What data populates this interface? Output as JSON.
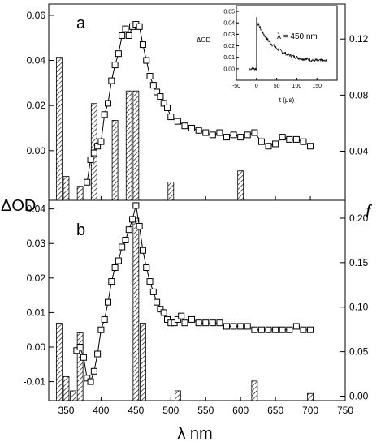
{
  "chart_data": [
    {
      "type": "bar+line",
      "panel_label": "a",
      "x_ticks": [],
      "xlim": [
        325,
        750
      ],
      "ylim_left": [
        -0.022,
        0.065
      ],
      "ylim_right": [
        0.005,
        0.145
      ],
      "y_left_ticks": [
        0.0,
        0.02,
        0.04,
        0.06
      ],
      "y_left_tick_labels": [
        "0.00",
        "0.02",
        "0.04",
        "0.06"
      ],
      "y_right_ticks": [
        0.04,
        0.08,
        0.12
      ],
      "y_right_tick_labels": [
        "0.04",
        "0.08",
        "0.12"
      ],
      "series": [
        {
          "axis": "left",
          "style": "line-open-square",
          "x": [
            380,
            385,
            390,
            395,
            400,
            405,
            410,
            415,
            420,
            425,
            430,
            435,
            440,
            445,
            450,
            455,
            460,
            465,
            470,
            475,
            480,
            485,
            490,
            495,
            500,
            510,
            520,
            530,
            540,
            550,
            560,
            570,
            580,
            590,
            600,
            610,
            620,
            630,
            640,
            650,
            660,
            670,
            680,
            690,
            700
          ],
          "y": [
            -0.014,
            -0.004,
            -0.001,
            0.002,
            0.004,
            0.016,
            0.021,
            0.031,
            0.038,
            0.043,
            0.051,
            0.054,
            0.051,
            0.055,
            0.056,
            0.055,
            0.047,
            0.04,
            0.033,
            0.029,
            0.026,
            0.024,
            0.021,
            0.019,
            0.015,
            0.013,
            0.011,
            0.01,
            0.009,
            0.008,
            0.007,
            0.008,
            0.006,
            0.007,
            0.006,
            0.007,
            0.008,
            0.004,
            0.002,
            0.003,
            0.006,
            0.005,
            0.005,
            0.004,
            0.002
          ]
        },
        {
          "axis": "right",
          "style": "hatched-bar",
          "x": [
            340,
            350,
            370,
            390,
            420,
            440,
            450,
            500,
            600
          ],
          "values": [
            0.107,
            0.022,
            0.015,
            0.074,
            0.062,
            0.083,
            0.083,
            0.018,
            0.026
          ]
        }
      ],
      "inset": {
        "xlabel": "t (μs)",
        "ylabel": "ΔOD",
        "annotation": "λ = 450 nm",
        "xlim": [
          -50,
          200
        ],
        "ylim": [
          -0.01,
          0.055
        ],
        "x_ticks": [
          -50,
          0,
          50,
          100,
          150
        ],
        "y_ticks": [
          0.0,
          0.01,
          0.02,
          0.03,
          0.04,
          0.05
        ],
        "y_tick_labels": [
          "0.00",
          "0.01",
          "0.02",
          "0.03",
          "0.04",
          "0.05"
        ]
      }
    },
    {
      "type": "bar+line",
      "panel_label": "b",
      "xlim": [
        325,
        750
      ],
      "ylim_left": [
        -0.0155,
        0.0425
      ],
      "ylim_right": [
        -0.005,
        0.22
      ],
      "x_ticks": [
        350,
        400,
        450,
        500,
        550,
        600,
        650,
        700,
        750
      ],
      "y_left_ticks": [
        -0.01,
        0.0,
        0.01,
        0.02,
        0.03,
        0.04
      ],
      "y_left_tick_labels": [
        "-0.01",
        "0.00",
        "0.01",
        "0.02",
        "0.03",
        "0.04"
      ],
      "y_right_ticks": [
        0.0,
        0.05,
        0.1,
        0.15,
        0.2
      ],
      "y_right_tick_labels": [
        "0.00",
        "0.05",
        "0.10",
        "0.15",
        "0.20"
      ],
      "series": [
        {
          "axis": "left",
          "style": "line-open-square",
          "x": [
            365,
            370,
            375,
            380,
            385,
            390,
            395,
            400,
            405,
            410,
            415,
            420,
            425,
            430,
            435,
            440,
            445,
            450,
            455,
            460,
            465,
            470,
            475,
            480,
            485,
            490,
            495,
            500,
            505,
            510,
            515,
            520,
            530,
            540,
            550,
            560,
            570,
            580,
            590,
            600,
            610,
            620,
            630,
            640,
            650,
            660,
            670,
            680,
            690,
            700
          ],
          "y": [
            -0.001,
            0.0,
            -0.003,
            -0.009,
            -0.01,
            -0.007,
            -0.002,
            0.005,
            0.008,
            0.013,
            0.019,
            0.023,
            0.025,
            0.029,
            0.031,
            0.034,
            0.037,
            0.041,
            0.035,
            0.028,
            0.023,
            0.019,
            0.016,
            0.013,
            0.011,
            0.01,
            0.008,
            0.007,
            0.007,
            0.008,
            0.009,
            0.007,
            0.008,
            0.007,
            0.007,
            0.007,
            0.007,
            0.006,
            0.006,
            0.006,
            0.006,
            0.005,
            0.005,
            0.005,
            0.005,
            0.005,
            0.005,
            0.006,
            0.005,
            0.005
          ]
        },
        {
          "axis": "right",
          "style": "hatched-bar",
          "x": [
            340,
            350,
            360,
            370,
            450,
            460,
            510,
            620,
            700
          ],
          "values": [
            0.082,
            0.022,
            0.006,
            0.071,
            0.2,
            0.082,
            0.006,
            0.017,
            0.003
          ]
        }
      ]
    }
  ],
  "labels": {
    "panel_a": "a",
    "panel_b": "b",
    "ylabel_left": "ΔOD",
    "ylabel_right": "f",
    "xlabel": "λ nm"
  }
}
